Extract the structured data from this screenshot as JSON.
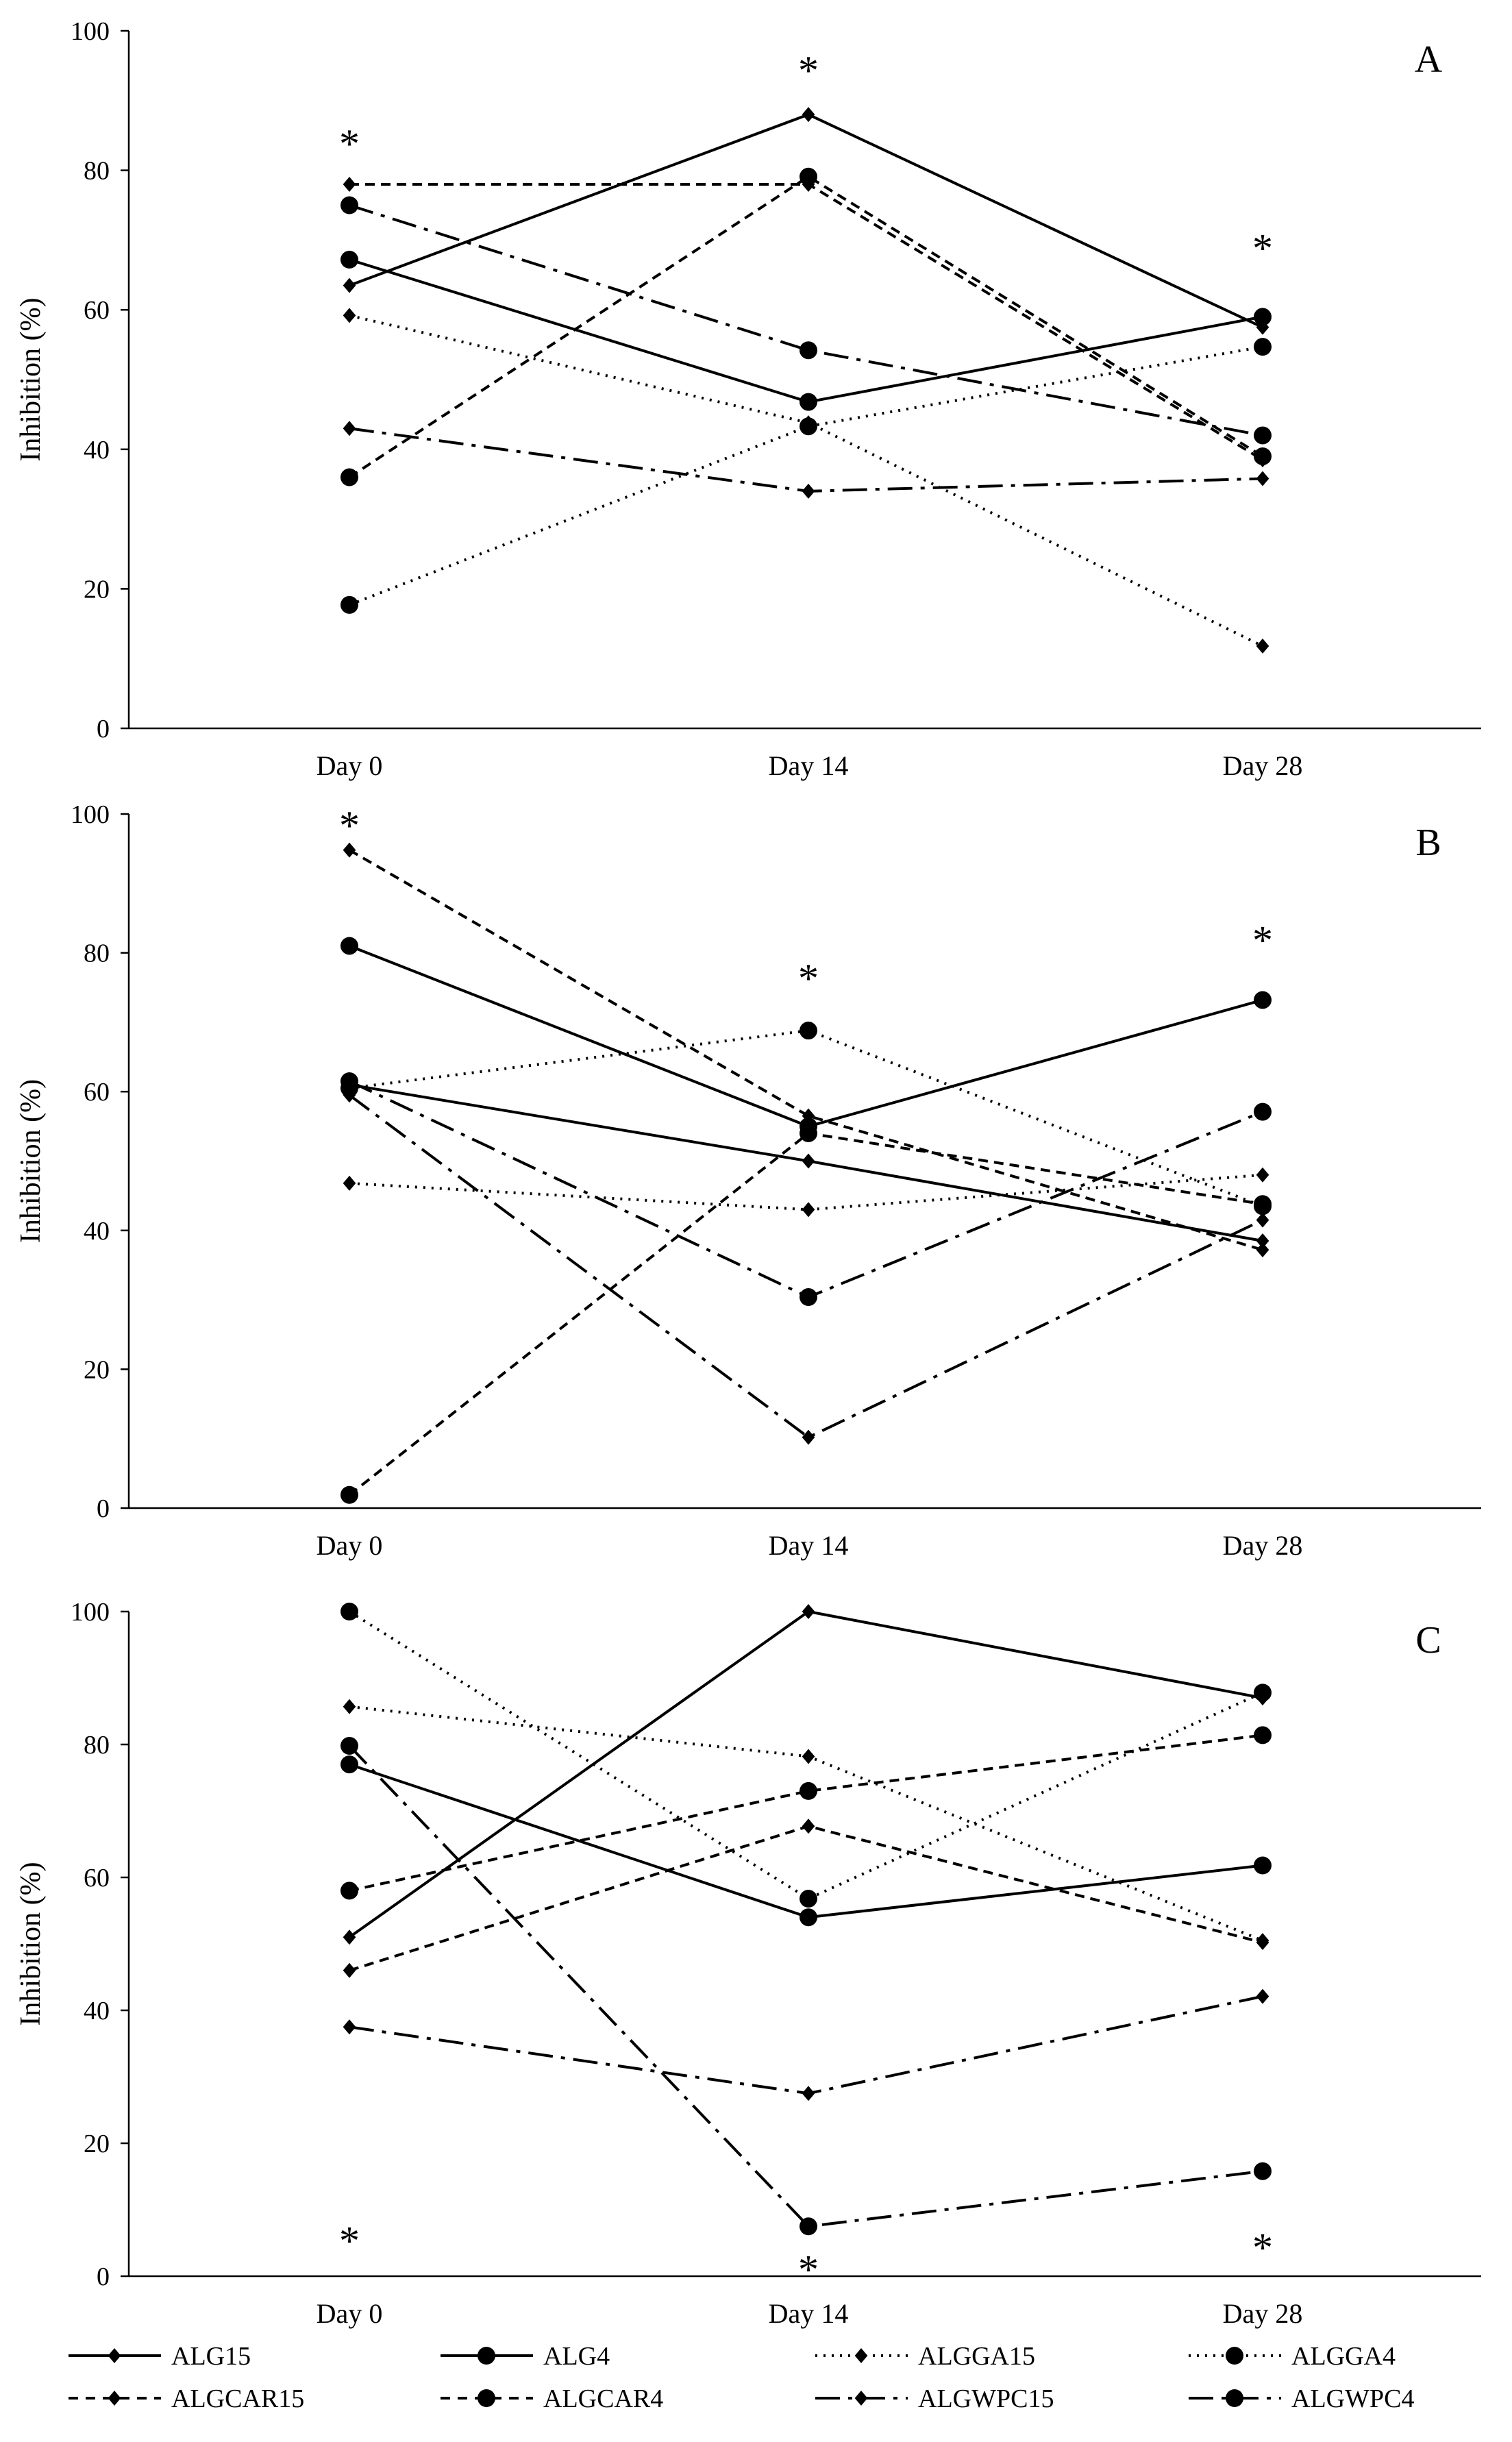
{
  "chart_data": [
    {
      "type": "line",
      "panel_label": "A",
      "ylabel": "Inhibition (%)",
      "xlabel": "",
      "categories": [
        "Day 0",
        "Day 14",
        "Day 28"
      ],
      "ylim": [
        0,
        100
      ],
      "yticks": [
        "0",
        "20",
        "40",
        "60",
        "80",
        "100"
      ],
      "series": [
        {
          "name": "ALG15",
          "values": [
            63.5,
            88,
            57.5
          ]
        },
        {
          "name": "ALG4",
          "values": [
            67.2,
            46.8,
            59
          ]
        },
        {
          "name": "ALGGA15",
          "values": [
            59.2,
            43.8,
            11.8
          ]
        },
        {
          "name": "ALGGA4",
          "values": [
            17.7,
            43.3,
            54.7
          ]
        },
        {
          "name": "ALGCAR15",
          "values": [
            78,
            78,
            38.5
          ]
        },
        {
          "name": "ALGCAR4",
          "values": [
            36,
            79.1,
            39
          ]
        },
        {
          "name": "ALGWPC15",
          "values": [
            43,
            34,
            35.8
          ]
        },
        {
          "name": "ALGWPC4",
          "values": [
            75,
            54.2,
            42
          ]
        }
      ],
      "annotations": [
        {
          "text": "*",
          "category": "Day 0",
          "y": 84
        },
        {
          "text": "*",
          "category": "Day 14",
          "y": 94.5
        },
        {
          "text": "*",
          "category": "Day 28",
          "y": 69
        }
      ]
    },
    {
      "type": "line",
      "panel_label": "B",
      "ylabel": "Inhibition (%)",
      "xlabel": "",
      "categories": [
        "Day 0",
        "Day 14",
        "Day 28"
      ],
      "ylim": [
        0,
        100
      ],
      "yticks": [
        "0",
        "20",
        "40",
        "60",
        "80",
        "100"
      ],
      "series": [
        {
          "name": "ALG15",
          "values": [
            61,
            50,
            38.5
          ]
        },
        {
          "name": "ALG4",
          "values": [
            81,
            55,
            73.2
          ]
        },
        {
          "name": "ALGGA15",
          "values": [
            46.8,
            43,
            48
          ]
        },
        {
          "name": "ALGGA4",
          "values": [
            60.5,
            68.8,
            43.5
          ]
        },
        {
          "name": "ALGCAR15",
          "values": [
            94.8,
            56.5,
            37.2
          ]
        },
        {
          "name": "ALGCAR4",
          "values": [
            1.9,
            54,
            43.8
          ]
        },
        {
          "name": "ALGWPC15",
          "values": [
            59.5,
            10.2,
            41.5
          ]
        },
        {
          "name": "ALGWPC4",
          "values": [
            61.5,
            30.4,
            57.1
          ]
        }
      ],
      "annotations": [
        {
          "text": "*",
          "category": "Day 0",
          "y": 98.5
        },
        {
          "text": "*",
          "category": "Day 14",
          "y": 76.5
        },
        {
          "text": "*",
          "category": "Day 28",
          "y": 82
        }
      ]
    },
    {
      "type": "line",
      "panel_label": "C",
      "ylabel": "Inhibition (%)",
      "xlabel": "",
      "categories": [
        "Day 0",
        "Day 14",
        "Day 28"
      ],
      "ylim": [
        0,
        100
      ],
      "yticks": [
        "0",
        "20",
        "40",
        "60",
        "80",
        "100"
      ],
      "series": [
        {
          "name": "ALG15",
          "values": [
            51,
            100,
            87
          ]
        },
        {
          "name": "ALG4",
          "values": [
            77,
            54,
            61.8
          ]
        },
        {
          "name": "ALGGA15",
          "values": [
            85.7,
            78.2,
            50.5
          ]
        },
        {
          "name": "ALGGA4",
          "values": [
            100,
            56.8,
            87.8
          ]
        },
        {
          "name": "ALGCAR15",
          "values": [
            46,
            67.7,
            50.2
          ]
        },
        {
          "name": "ALGCAR4",
          "values": [
            58,
            73,
            81.4
          ]
        },
        {
          "name": "ALGWPC15",
          "values": [
            37.5,
            27.5,
            42.1
          ]
        },
        {
          "name": "ALGWPC4",
          "values": [
            79.8,
            7.5,
            15.8
          ]
        }
      ],
      "annotations": [
        {
          "text": "*",
          "category": "Day 0",
          "y": 5.5
        },
        {
          "text": "*",
          "category": "Day 14",
          "y": 1.2
        },
        {
          "text": "*",
          "category": "Day 28",
          "y": 4.5
        }
      ]
    }
  ],
  "legend": [
    {
      "name": "ALG15",
      "marker": "diamond",
      "dash": "solid"
    },
    {
      "name": "ALG4",
      "marker": "circle",
      "dash": "solid"
    },
    {
      "name": "ALGGA15",
      "marker": "diamond",
      "dash": "dotted"
    },
    {
      "name": "ALGGA4",
      "marker": "circle",
      "dash": "dotted"
    },
    {
      "name": "ALGCAR15",
      "marker": "diamond",
      "dash": "dashed"
    },
    {
      "name": "ALGCAR4",
      "marker": "circle",
      "dash": "dashed"
    },
    {
      "name": "ALGWPC15",
      "marker": "diamond",
      "dash": "dashdot"
    },
    {
      "name": "ALGWPC4",
      "marker": "circle",
      "dash": "dashdot"
    }
  ],
  "colors": {
    "line": "#000000",
    "background": "#ffffff"
  }
}
